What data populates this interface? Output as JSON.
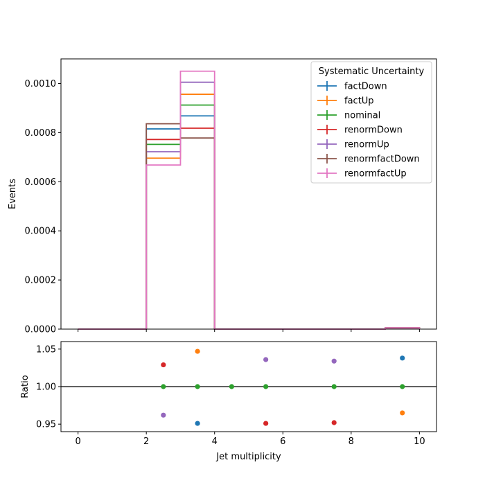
{
  "chart_data": [
    {
      "type": "line",
      "panel": "main",
      "ylabel": "Events",
      "xlim": [
        -0.5,
        10.5
      ],
      "ylim": [
        0,
        0.0011
      ],
      "yticks": [
        0.0,
        0.0002,
        0.0004,
        0.0006,
        0.0008,
        0.001
      ],
      "ytick_labels": [
        "0.0000",
        "0.0002",
        "0.0004",
        "0.0006",
        "0.0008",
        "0.0010"
      ],
      "xticks": [
        0,
        2,
        4,
        6,
        8,
        10
      ],
      "xtick_labels_visible": false,
      "bin_edges": [
        0,
        1,
        2,
        3,
        4,
        5,
        6,
        7,
        8,
        9,
        10
      ],
      "legend_title": "Systematic Uncertainty",
      "legend_position": "top-right",
      "series": [
        {
          "name": "factDown",
          "color": "#1f77b4",
          "values": [
            0,
            0,
            0.000815,
            0.000868,
            0,
            0,
            0,
            0,
            0,
            5e-06
          ]
        },
        {
          "name": "factUp",
          "color": "#ff7f0e",
          "values": [
            0,
            0,
            0.000696,
            0.000956,
            0,
            0,
            0,
            0,
            0,
            5e-06
          ]
        },
        {
          "name": "nominal",
          "color": "#2ca02c",
          "values": [
            0,
            0,
            0.000752,
            0.000912,
            0,
            0,
            0,
            0,
            0,
            5e-06
          ]
        },
        {
          "name": "renormDown",
          "color": "#d62728",
          "values": [
            0,
            0,
            0.000772,
            0.000818,
            0,
            0,
            0,
            0,
            0,
            5e-06
          ]
        },
        {
          "name": "renormUp",
          "color": "#9467bd",
          "values": [
            0,
            0,
            0.000722,
            0.001005,
            0,
            0,
            0,
            0,
            0,
            5e-06
          ]
        },
        {
          "name": "renormfactDown",
          "color": "#8c564b",
          "values": [
            0,
            0,
            0.000836,
            0.000778,
            0,
            0,
            0,
            0,
            0,
            5e-06
          ]
        },
        {
          "name": "renormfactUp",
          "color": "#e377c2",
          "values": [
            0,
            0,
            0.000668,
            0.00105,
            0,
            0,
            0,
            0,
            0,
            5e-06
          ]
        }
      ]
    },
    {
      "type": "scatter",
      "panel": "ratio",
      "xlabel": "Jet multiplicity",
      "ylabel": "Ratio",
      "xlim": [
        -0.5,
        10.5
      ],
      "ylim": [
        0.94,
        1.06
      ],
      "yticks": [
        0.95,
        1.0,
        1.05
      ],
      "ytick_labels": [
        "0.95",
        "1.00",
        "1.05"
      ],
      "xticks": [
        0,
        2,
        4,
        6,
        8,
        10
      ],
      "xtick_labels": [
        "0",
        "2",
        "4",
        "6",
        "8",
        "10"
      ],
      "reference_line": 1.0,
      "points": [
        {
          "series": "renormDown",
          "color": "#d62728",
          "x": 2.5,
          "y": 1.029
        },
        {
          "series": "nominal",
          "color": "#2ca02c",
          "x": 2.5,
          "y": 1.0
        },
        {
          "series": "renormUp",
          "color": "#9467bd",
          "x": 2.5,
          "y": 0.962
        },
        {
          "series": "factUp",
          "color": "#ff7f0e",
          "x": 3.5,
          "y": 1.047
        },
        {
          "series": "nominal",
          "color": "#2ca02c",
          "x": 3.5,
          "y": 1.0
        },
        {
          "series": "factDown",
          "color": "#1f77b4",
          "x": 3.5,
          "y": 0.951
        },
        {
          "series": "nominal",
          "color": "#2ca02c",
          "x": 4.5,
          "y": 1.0
        },
        {
          "series": "renormUp",
          "color": "#9467bd",
          "x": 5.5,
          "y": 1.036
        },
        {
          "series": "nominal",
          "color": "#2ca02c",
          "x": 5.5,
          "y": 1.0
        },
        {
          "series": "renormDown",
          "color": "#d62728",
          "x": 5.5,
          "y": 0.951
        },
        {
          "series": "renormUp",
          "color": "#9467bd",
          "x": 7.5,
          "y": 1.034
        },
        {
          "series": "nominal",
          "color": "#2ca02c",
          "x": 7.5,
          "y": 1.0
        },
        {
          "series": "renormDown",
          "color": "#d62728",
          "x": 7.5,
          "y": 0.952
        },
        {
          "series": "factDown",
          "color": "#1f77b4",
          "x": 9.5,
          "y": 1.038
        },
        {
          "series": "nominal",
          "color": "#2ca02c",
          "x": 9.5,
          "y": 1.0
        },
        {
          "series": "factUp",
          "color": "#ff7f0e",
          "x": 9.5,
          "y": 0.965
        }
      ]
    }
  ]
}
